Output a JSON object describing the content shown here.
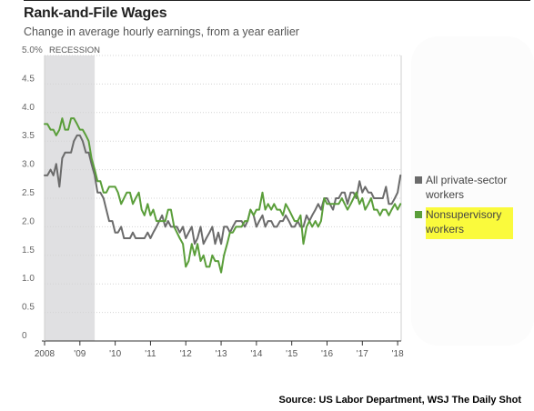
{
  "header": {
    "title": "Rank-and-File Wages",
    "subtitle": "Change in average hourly earnings, from a year earlier"
  },
  "source": "Source: US Labor Department, WSJ The Daily Shot",
  "chart_data": {
    "type": "line",
    "title": "Rank-and-File Wages",
    "subtitle": "Change in average hourly earnings, from a year earlier",
    "xlabel": "",
    "ylabel": "",
    "xlim": [
      2008.0,
      2018.1
    ],
    "ylim": [
      0,
      5.0
    ],
    "y_ticks": [
      0,
      0.5,
      1.0,
      1.5,
      2.0,
      2.5,
      3.0,
      3.5,
      4.0,
      4.5,
      5.0
    ],
    "y_tick_labels": [
      "0",
      "0.5",
      "1.0",
      "1.5",
      "2.0",
      "2.5",
      "3.0",
      "3.5",
      "4.0",
      "4.5",
      "5.0%"
    ],
    "x_ticks": [
      2008,
      2009,
      2010,
      2011,
      2012,
      2013,
      2014,
      2015,
      2016,
      2017,
      2018
    ],
    "x_tick_labels": [
      "2008",
      "'09",
      "'10",
      "'11",
      "'12",
      "'13",
      "'14",
      "'15",
      "'16",
      "'17",
      "'18"
    ],
    "grid": true,
    "recession": {
      "start": 2008.0,
      "end": 2009.42,
      "label": "RECESSION",
      "color": "#e0e0e2"
    },
    "legend_position": "right",
    "series": [
      {
        "name": "All private-sector workers",
        "color": "#6b6b6b",
        "points": [
          [
            2008.0,
            2.9
          ],
          [
            2008.08,
            2.9
          ],
          [
            2008.17,
            3.0
          ],
          [
            2008.25,
            2.9
          ],
          [
            2008.33,
            3.1
          ],
          [
            2008.42,
            2.7
          ],
          [
            2008.5,
            3.2
          ],
          [
            2008.58,
            3.3
          ],
          [
            2008.67,
            3.3
          ],
          [
            2008.75,
            3.3
          ],
          [
            2008.83,
            3.5
          ],
          [
            2008.92,
            3.6
          ],
          [
            2009.0,
            3.6
          ],
          [
            2009.08,
            3.5
          ],
          [
            2009.17,
            3.3
          ],
          [
            2009.25,
            3.3
          ],
          [
            2009.33,
            3.1
          ],
          [
            2009.42,
            2.9
          ],
          [
            2009.5,
            2.6
          ],
          [
            2009.58,
            2.6
          ],
          [
            2009.67,
            2.5
          ],
          [
            2009.75,
            2.3
          ],
          [
            2009.83,
            2.1
          ],
          [
            2009.92,
            2.1
          ],
          [
            2010.0,
            1.9
          ],
          [
            2010.08,
            1.9
          ],
          [
            2010.17,
            2.0
          ],
          [
            2010.25,
            1.8
          ],
          [
            2010.33,
            1.8
          ],
          [
            2010.42,
            1.8
          ],
          [
            2010.5,
            1.9
          ],
          [
            2010.58,
            1.8
          ],
          [
            2010.67,
            1.8
          ],
          [
            2010.75,
            1.8
          ],
          [
            2010.83,
            1.8
          ],
          [
            2010.92,
            1.9
          ],
          [
            2011.0,
            1.8
          ],
          [
            2011.08,
            1.9
          ],
          [
            2011.17,
            2.0
          ],
          [
            2011.25,
            2.1
          ],
          [
            2011.33,
            2.2
          ],
          [
            2011.42,
            2.0
          ],
          [
            2011.5,
            2.1
          ],
          [
            2011.58,
            2.0
          ],
          [
            2011.67,
            2.0
          ],
          [
            2011.75,
            2.0
          ],
          [
            2011.83,
            1.9
          ],
          [
            2011.92,
            2.0
          ],
          [
            2012.0,
            1.8
          ],
          [
            2012.08,
            1.9
          ],
          [
            2012.17,
            2.0
          ],
          [
            2012.25,
            1.7
          ],
          [
            2012.33,
            1.8
          ],
          [
            2012.42,
            2.0
          ],
          [
            2012.5,
            1.7
          ],
          [
            2012.58,
            1.8
          ],
          [
            2012.67,
            1.9
          ],
          [
            2012.75,
            2.0
          ],
          [
            2012.83,
            1.7
          ],
          [
            2012.92,
            1.9
          ],
          [
            2013.0,
            1.7
          ],
          [
            2013.08,
            2.0
          ],
          [
            2013.17,
            2.0
          ],
          [
            2013.25,
            1.9
          ],
          [
            2013.33,
            2.0
          ],
          [
            2013.42,
            2.1
          ],
          [
            2013.5,
            2.1
          ],
          [
            2013.58,
            2.1
          ],
          [
            2013.67,
            2.0
          ],
          [
            2013.75,
            2.1
          ],
          [
            2013.83,
            2.3
          ],
          [
            2013.92,
            2.2
          ],
          [
            2014.0,
            2.0
          ],
          [
            2014.08,
            2.1
          ],
          [
            2014.17,
            2.2
          ],
          [
            2014.25,
            2.0
          ],
          [
            2014.33,
            2.1
          ],
          [
            2014.42,
            2.1
          ],
          [
            2014.5,
            2.0
          ],
          [
            2014.58,
            2.0
          ],
          [
            2014.67,
            2.1
          ],
          [
            2014.75,
            2.1
          ],
          [
            2014.83,
            2.2
          ],
          [
            2014.92,
            2.1
          ],
          [
            2015.0,
            2.0
          ],
          [
            2015.08,
            2.0
          ],
          [
            2015.17,
            2.1
          ],
          [
            2015.25,
            2.0
          ],
          [
            2015.33,
            2.0
          ],
          [
            2015.42,
            2.2
          ],
          [
            2015.5,
            2.1
          ],
          [
            2015.58,
            2.2
          ],
          [
            2015.67,
            2.3
          ],
          [
            2015.75,
            2.4
          ],
          [
            2015.83,
            2.3
          ],
          [
            2015.92,
            2.5
          ],
          [
            2016.0,
            2.5
          ],
          [
            2016.08,
            2.4
          ],
          [
            2016.17,
            2.3
          ],
          [
            2016.25,
            2.5
          ],
          [
            2016.33,
            2.5
          ],
          [
            2016.42,
            2.6
          ],
          [
            2016.5,
            2.6
          ],
          [
            2016.58,
            2.4
          ],
          [
            2016.67,
            2.6
          ],
          [
            2016.75,
            2.6
          ],
          [
            2016.83,
            2.5
          ],
          [
            2016.92,
            2.8
          ],
          [
            2017.0,
            2.6
          ],
          [
            2017.08,
            2.7
          ],
          [
            2017.17,
            2.6
          ],
          [
            2017.25,
            2.6
          ],
          [
            2017.33,
            2.5
          ],
          [
            2017.42,
            2.5
          ],
          [
            2017.5,
            2.5
          ],
          [
            2017.58,
            2.5
          ],
          [
            2017.67,
            2.7
          ],
          [
            2017.75,
            2.4
          ],
          [
            2017.83,
            2.4
          ],
          [
            2017.92,
            2.5
          ],
          [
            2018.0,
            2.6
          ],
          [
            2018.08,
            2.9
          ]
        ]
      },
      {
        "name": "Nonsupervisory workers",
        "color": "#5a9e3a",
        "points": [
          [
            2008.0,
            3.8
          ],
          [
            2008.08,
            3.8
          ],
          [
            2008.17,
            3.7
          ],
          [
            2008.25,
            3.7
          ],
          [
            2008.33,
            3.6
          ],
          [
            2008.42,
            3.7
          ],
          [
            2008.5,
            3.9
          ],
          [
            2008.58,
            3.7
          ],
          [
            2008.67,
            3.7
          ],
          [
            2008.75,
            3.9
          ],
          [
            2008.83,
            3.9
          ],
          [
            2008.92,
            3.8
          ],
          [
            2009.0,
            3.7
          ],
          [
            2009.08,
            3.7
          ],
          [
            2009.17,
            3.6
          ],
          [
            2009.25,
            3.5
          ],
          [
            2009.33,
            3.2
          ],
          [
            2009.42,
            3.0
          ],
          [
            2009.5,
            2.8
          ],
          [
            2009.58,
            2.8
          ],
          [
            2009.67,
            2.6
          ],
          [
            2009.75,
            2.6
          ],
          [
            2009.83,
            2.7
          ],
          [
            2009.92,
            2.7
          ],
          [
            2010.0,
            2.7
          ],
          [
            2010.08,
            2.6
          ],
          [
            2010.17,
            2.4
          ],
          [
            2010.25,
            2.5
          ],
          [
            2010.33,
            2.6
          ],
          [
            2010.42,
            2.6
          ],
          [
            2010.5,
            2.4
          ],
          [
            2010.58,
            2.5
          ],
          [
            2010.67,
            2.6
          ],
          [
            2010.75,
            2.3
          ],
          [
            2010.83,
            2.2
          ],
          [
            2010.92,
            2.4
          ],
          [
            2011.0,
            2.2
          ],
          [
            2011.08,
            2.3
          ],
          [
            2011.17,
            2.1
          ],
          [
            2011.25,
            2.1
          ],
          [
            2011.33,
            2.1
          ],
          [
            2011.42,
            2.1
          ],
          [
            2011.5,
            2.3
          ],
          [
            2011.58,
            2.3
          ],
          [
            2011.67,
            2.0
          ],
          [
            2011.75,
            1.9
          ],
          [
            2011.83,
            1.8
          ],
          [
            2011.92,
            1.7
          ],
          [
            2012.0,
            1.3
          ],
          [
            2012.08,
            1.4
          ],
          [
            2012.17,
            1.7
          ],
          [
            2012.25,
            1.5
          ],
          [
            2012.33,
            1.7
          ],
          [
            2012.42,
            1.4
          ],
          [
            2012.5,
            1.5
          ],
          [
            2012.58,
            1.3
          ],
          [
            2012.67,
            1.3
          ],
          [
            2012.75,
            1.5
          ],
          [
            2012.83,
            1.4
          ],
          [
            2012.92,
            1.4
          ],
          [
            2013.0,
            1.2
          ],
          [
            2013.08,
            1.5
          ],
          [
            2013.17,
            1.7
          ],
          [
            2013.25,
            1.9
          ],
          [
            2013.33,
            1.9
          ],
          [
            2013.42,
            2.0
          ],
          [
            2013.5,
            2.0
          ],
          [
            2013.58,
            2.0
          ],
          [
            2013.67,
            2.1
          ],
          [
            2013.75,
            2.1
          ],
          [
            2013.83,
            2.3
          ],
          [
            2013.92,
            2.2
          ],
          [
            2014.0,
            2.3
          ],
          [
            2014.08,
            2.3
          ],
          [
            2014.17,
            2.6
          ],
          [
            2014.25,
            2.3
          ],
          [
            2014.33,
            2.4
          ],
          [
            2014.42,
            2.3
          ],
          [
            2014.5,
            2.4
          ],
          [
            2014.58,
            2.3
          ],
          [
            2014.67,
            2.3
          ],
          [
            2014.75,
            2.2
          ],
          [
            2014.83,
            2.4
          ],
          [
            2014.92,
            2.3
          ],
          [
            2015.0,
            2.2
          ],
          [
            2015.08,
            2.1
          ],
          [
            2015.17,
            2.1
          ],
          [
            2015.25,
            2.2
          ],
          [
            2015.33,
            1.7
          ],
          [
            2015.42,
            2.0
          ],
          [
            2015.5,
            2.1
          ],
          [
            2015.58,
            2.0
          ],
          [
            2015.67,
            2.1
          ],
          [
            2015.75,
            2.0
          ],
          [
            2015.83,
            2.1
          ],
          [
            2015.92,
            2.5
          ],
          [
            2016.0,
            2.4
          ],
          [
            2016.08,
            2.4
          ],
          [
            2016.17,
            2.4
          ],
          [
            2016.25,
            2.4
          ],
          [
            2016.33,
            2.4
          ],
          [
            2016.42,
            2.5
          ],
          [
            2016.5,
            2.4
          ],
          [
            2016.58,
            2.3
          ],
          [
            2016.67,
            2.4
          ],
          [
            2016.75,
            2.5
          ],
          [
            2016.83,
            2.6
          ],
          [
            2016.92,
            2.4
          ],
          [
            2017.0,
            2.5
          ],
          [
            2017.08,
            2.3
          ],
          [
            2017.17,
            2.4
          ],
          [
            2017.25,
            2.5
          ],
          [
            2017.33,
            2.3
          ],
          [
            2017.42,
            2.3
          ],
          [
            2017.5,
            2.2
          ],
          [
            2017.58,
            2.3
          ],
          [
            2017.67,
            2.3
          ],
          [
            2017.75,
            2.2
          ],
          [
            2017.83,
            2.3
          ],
          [
            2017.92,
            2.4
          ],
          [
            2018.0,
            2.3
          ],
          [
            2018.08,
            2.4
          ]
        ]
      }
    ]
  }
}
